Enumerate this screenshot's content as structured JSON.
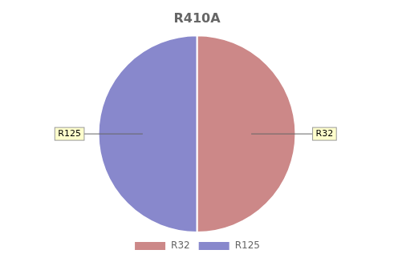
{
  "chart_data": {
    "type": "pie",
    "title": "R410A",
    "categories": [
      "R32",
      "R125"
    ],
    "values": [
      0.5,
      0.5
    ],
    "colors": [
      "#cc8888",
      "#8888cc"
    ],
    "legend": "bottom",
    "annotations": [
      "R32",
      "R125"
    ]
  }
}
